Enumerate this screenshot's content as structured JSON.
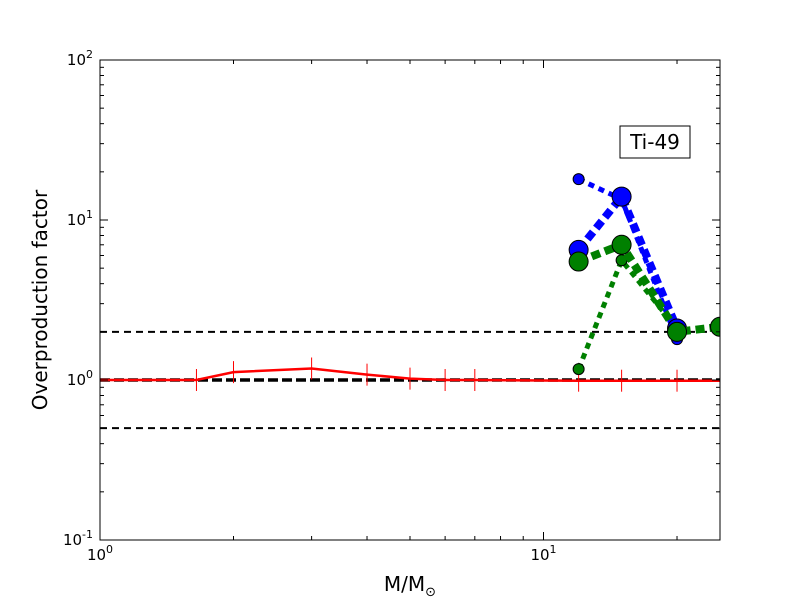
{
  "chart_data": {
    "type": "line",
    "title": "",
    "annotation": "Ti-49",
    "xlabel_main": "M/M",
    "xlabel_sub": "⊙",
    "ylabel": "Overproduction factor",
    "x_scale": "log",
    "y_scale": "log",
    "xlim": [
      1,
      25
    ],
    "ylim": [
      0.1,
      100
    ],
    "x_ticks": [
      {
        "value": 1,
        "base": "10",
        "exp": "0"
      },
      {
        "value": 10,
        "base": "10",
        "exp": "1"
      }
    ],
    "y_ticks": [
      {
        "value": 0.1,
        "base": "10",
        "exp": "-1"
      },
      {
        "value": 1,
        "base": "10",
        "exp": "0"
      },
      {
        "value": 10,
        "base": "10",
        "exp": "1"
      },
      {
        "value": 100,
        "base": "10",
        "exp": "2"
      }
    ],
    "grid": false,
    "legend": "none",
    "reference_lines": [
      {
        "y": 2.0,
        "color": "#000000",
        "style": "dashed",
        "weight": "normal"
      },
      {
        "y": 1.0,
        "color": "#000000",
        "style": "dashed",
        "weight": "bold"
      },
      {
        "y": 0.5,
        "color": "#000000",
        "style": "dashed",
        "weight": "normal"
      }
    ],
    "series": [
      {
        "color": "#ff0000",
        "style": "solid",
        "marker": "tick",
        "x": [
          1,
          1.65,
          2,
          3,
          4,
          5,
          6,
          7,
          12,
          15,
          20,
          25
        ],
        "y": [
          1.0,
          1.0,
          1.12,
          1.18,
          1.08,
          1.02,
          1.0,
          1.0,
          0.99,
          0.99,
          0.99,
          0.99
        ]
      },
      {
        "color": "#0000ff",
        "style": "dotted",
        "marker": "circle-small",
        "x": [
          12,
          15,
          20
        ],
        "y": [
          18,
          13.5,
          1.8
        ]
      },
      {
        "color": "#0000ff",
        "style": "dotted",
        "marker": "circle-large",
        "x": [
          12,
          15,
          20
        ],
        "y": [
          6.5,
          14,
          2.1
        ]
      },
      {
        "color": "#008000",
        "style": "dotted",
        "marker": "circle-small",
        "x": [
          12,
          15,
          20
        ],
        "y": [
          1.17,
          5.6,
          2.1
        ]
      },
      {
        "color": "#008000",
        "style": "dotted",
        "marker": "circle-large",
        "x": [
          12,
          15,
          20,
          25
        ],
        "y": [
          5.5,
          7.0,
          2.0,
          2.15
        ]
      }
    ]
  }
}
